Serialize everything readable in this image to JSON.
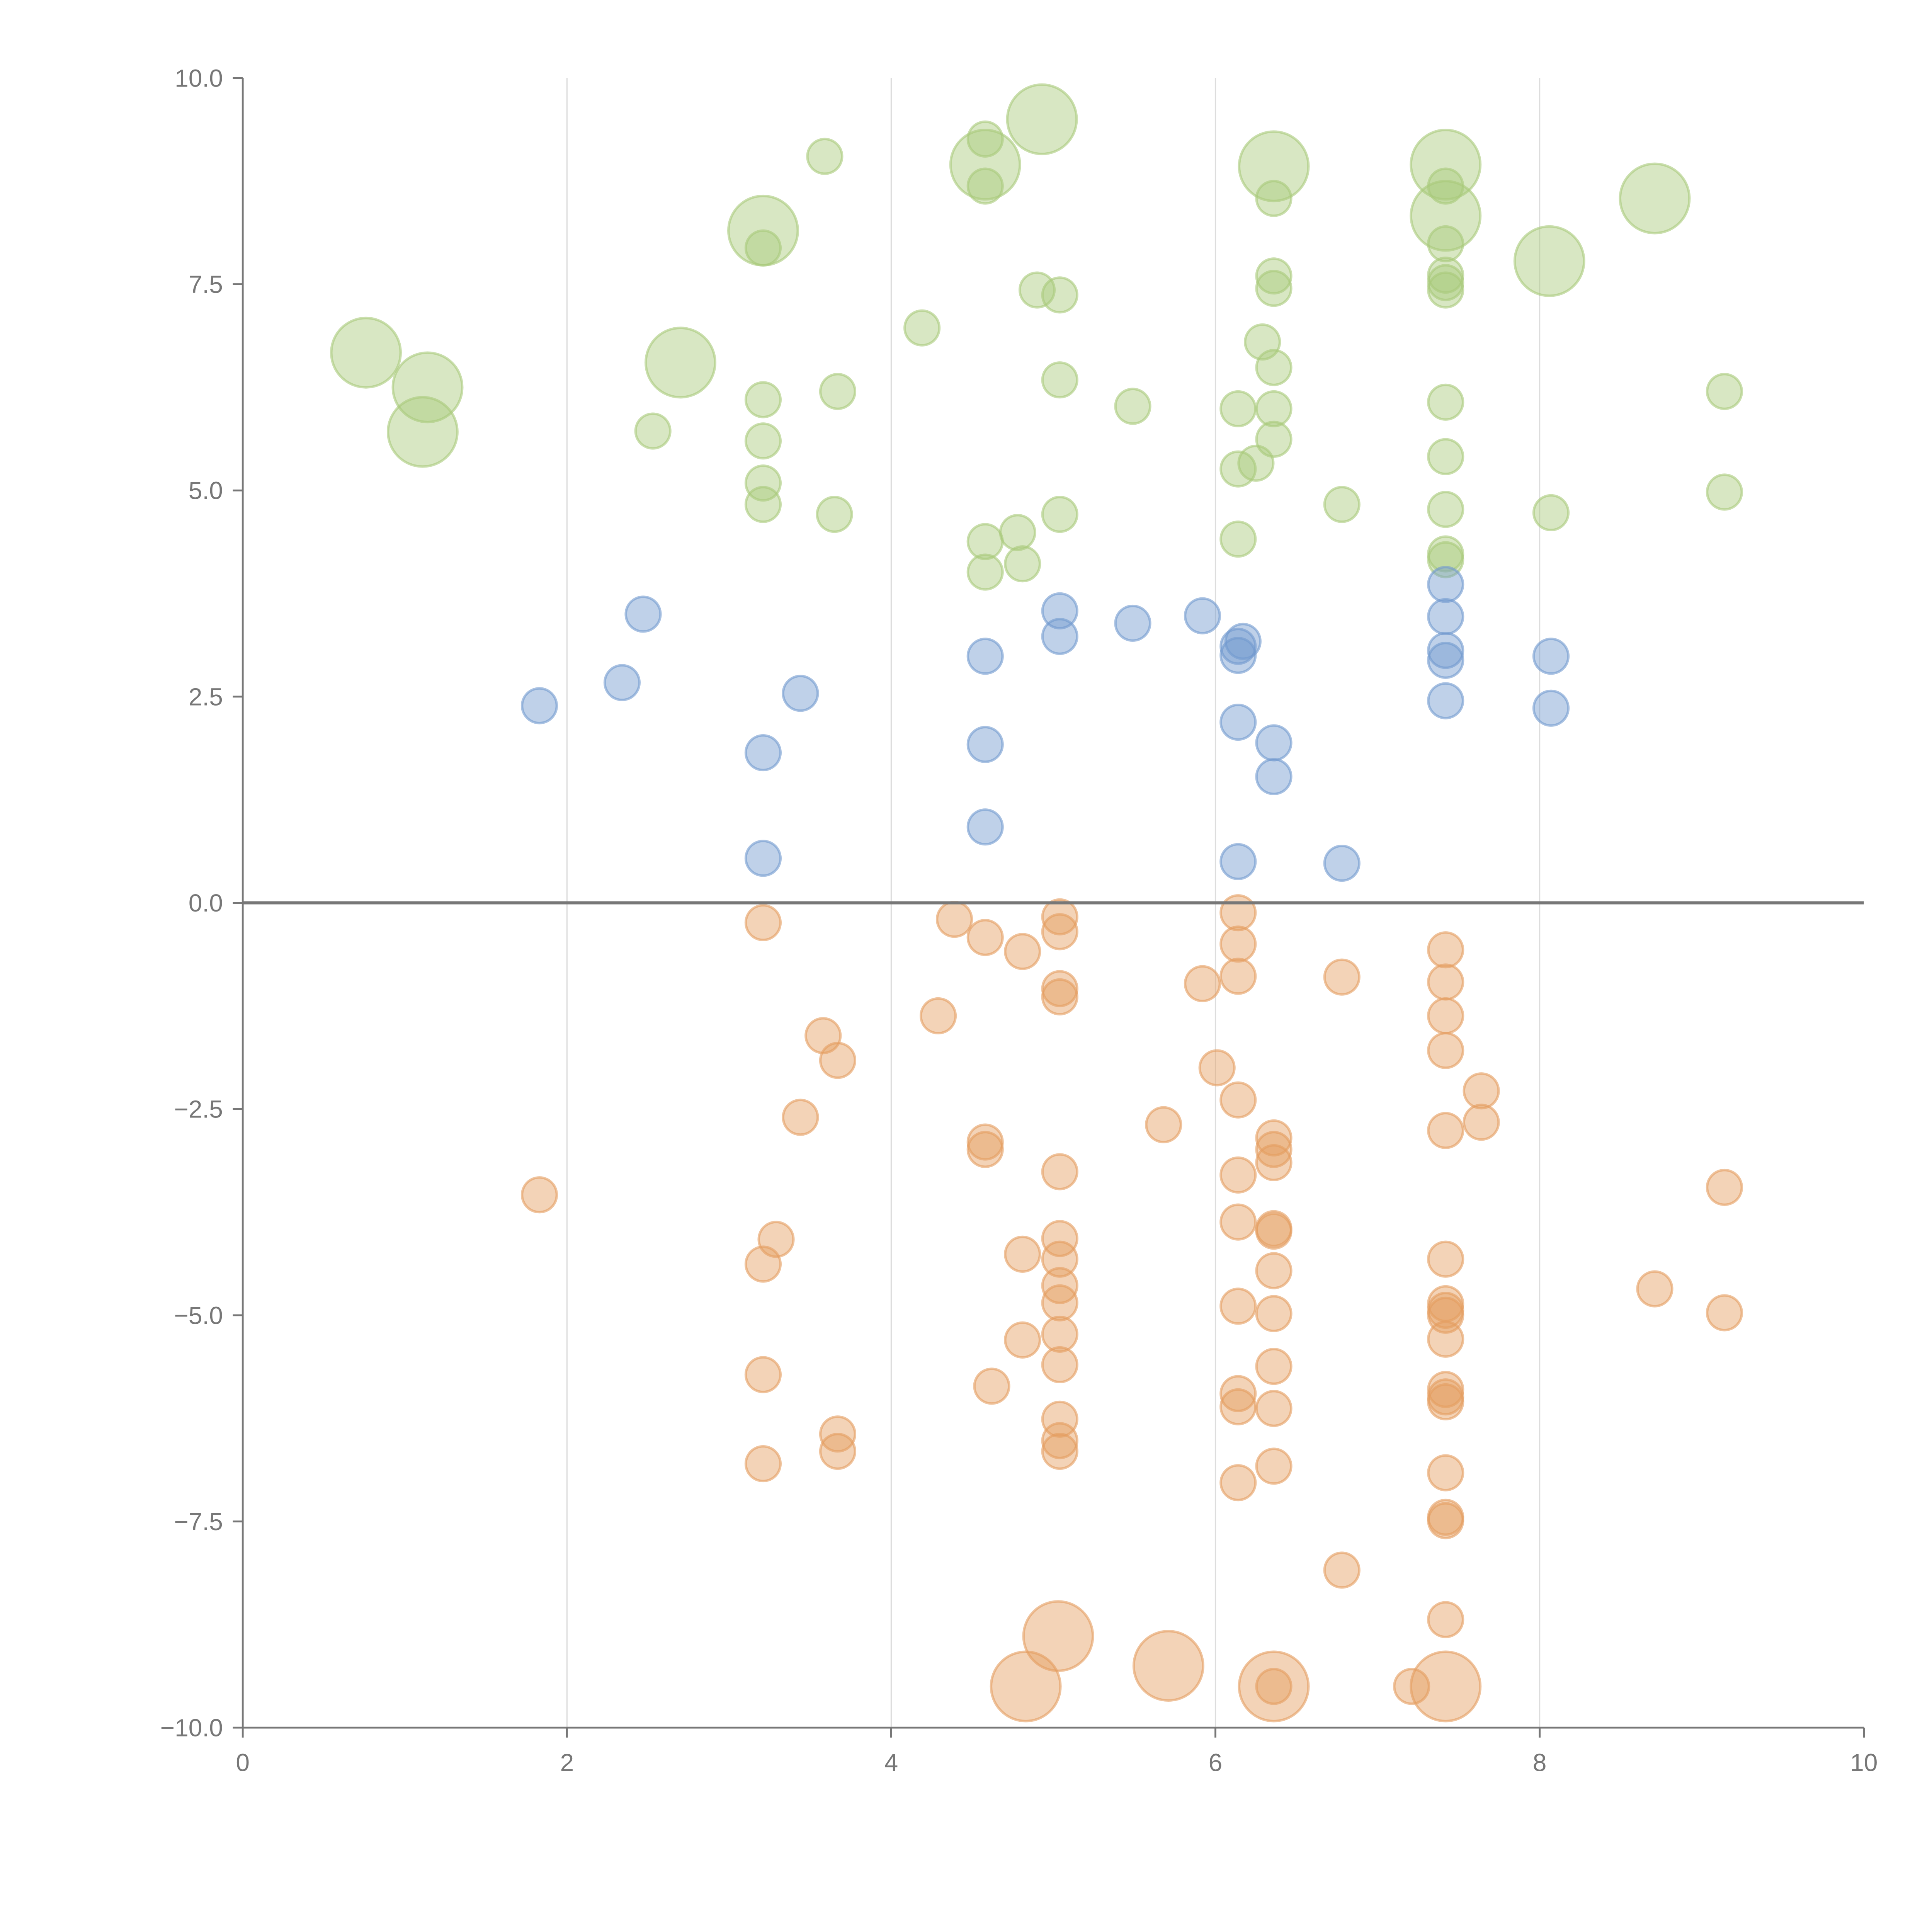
{
  "chart_data": {
    "type": "scatter",
    "title": "",
    "xlabel": "",
    "ylabel": "",
    "xlim": [
      0,
      10
    ],
    "ylim": [
      -10,
      10
    ],
    "grid": "vertical",
    "x_ticks": [
      "0",
      "2",
      "4",
      "6",
      "8",
      "10"
    ],
    "y_ticks": [
      "10.0",
      "7.5",
      "5.0",
      "2.5",
      "0.0",
      "−2.5",
      "−5.0",
      "−7.5",
      "−10.0"
    ],
    "colors": {
      "green": "#a9c97a",
      "blue": "#7199cf",
      "orange": "#e59d5f",
      "axis": "#777777"
    },
    "point_format": [
      "x",
      "y",
      "size"
    ],
    "series": [
      {
        "name": "green",
        "color": "#a9c97a",
        "points": [
          [
            3.59,
            9.05,
            1
          ],
          [
            4.58,
            9.26,
            1
          ],
          [
            4.58,
            8.69,
            1
          ],
          [
            3.21,
            7.94,
            1
          ],
          [
            4.9,
            7.43,
            1
          ],
          [
            5.04,
            7.37,
            1
          ],
          [
            4.19,
            6.97,
            1
          ],
          [
            6.36,
            7.6,
            1
          ],
          [
            6.36,
            7.45,
            1
          ],
          [
            6.36,
            8.54,
            1
          ],
          [
            7.42,
            8.69,
            1
          ],
          [
            7.42,
            7.99,
            1
          ],
          [
            7.42,
            7.61,
            1
          ],
          [
            7.42,
            7.52,
            1
          ],
          [
            7.42,
            7.43,
            1
          ],
          [
            6.29,
            6.8,
            1
          ],
          [
            6.36,
            6.49,
            1
          ],
          [
            6.14,
            5.99,
            1
          ],
          [
            6.36,
            5.99,
            1
          ],
          [
            6.36,
            5.62,
            1
          ],
          [
            6.14,
            5.26,
            1
          ],
          [
            6.25,
            5.33,
            1
          ],
          [
            3.21,
            6.1,
            1
          ],
          [
            3.67,
            6.2,
            1
          ],
          [
            3.21,
            5.6,
            1
          ],
          [
            2.53,
            5.72,
            1
          ],
          [
            3.21,
            5.09,
            1
          ],
          [
            3.21,
            4.83,
            1
          ],
          [
            3.65,
            4.71,
            1
          ],
          [
            5.04,
            6.34,
            1
          ],
          [
            5.49,
            6.02,
            1
          ],
          [
            5.04,
            4.71,
            1
          ],
          [
            4.58,
            4.38,
            1
          ],
          [
            4.78,
            4.49,
            1
          ],
          [
            4.81,
            4.11,
            1
          ],
          [
            4.58,
            4.01,
            1
          ],
          [
            6.14,
            4.41,
            1
          ],
          [
            6.78,
            4.83,
            1
          ],
          [
            7.42,
            6.07,
            1
          ],
          [
            7.42,
            5.41,
            1
          ],
          [
            7.42,
            4.77,
            1
          ],
          [
            7.42,
            4.23,
            1
          ],
          [
            7.42,
            4.16,
            1
          ],
          [
            8.07,
            4.73,
            1
          ],
          [
            9.14,
            6.2,
            1
          ],
          [
            9.14,
            4.98,
            1
          ],
          [
            0.76,
            6.67,
            3
          ],
          [
            1.14,
            6.25,
            3
          ],
          [
            1.11,
            5.71,
            3
          ],
          [
            2.7,
            6.55,
            3
          ],
          [
            3.21,
            8.15,
            3
          ],
          [
            4.58,
            8.95,
            3
          ],
          [
            4.93,
            9.5,
            3
          ],
          [
            6.36,
            8.93,
            3
          ],
          [
            7.42,
            8.95,
            3
          ],
          [
            7.42,
            8.33,
            3
          ],
          [
            8.06,
            7.78,
            3
          ],
          [
            8.71,
            8.54,
            3
          ]
        ]
      },
      {
        "name": "blue",
        "color": "#7199cf",
        "points": [
          [
            1.83,
            2.39,
            1
          ],
          [
            2.34,
            2.67,
            1
          ],
          [
            2.47,
            3.5,
            1
          ],
          [
            3.21,
            1.82,
            1
          ],
          [
            3.21,
            0.54,
            1
          ],
          [
            3.44,
            2.54,
            1
          ],
          [
            4.58,
            2.99,
            1
          ],
          [
            4.58,
            1.92,
            1
          ],
          [
            4.58,
            0.92,
            1
          ],
          [
            5.04,
            3.54,
            1
          ],
          [
            5.04,
            3.23,
            1
          ],
          [
            5.49,
            3.39,
            1
          ],
          [
            5.92,
            3.48,
            1
          ],
          [
            6.14,
            3.11,
            1
          ],
          [
            6.14,
            3.0,
            1
          ],
          [
            6.17,
            3.17,
            1
          ],
          [
            6.14,
            2.19,
            1
          ],
          [
            6.36,
            1.94,
            1
          ],
          [
            6.36,
            1.53,
            1
          ],
          [
            6.14,
            0.5,
            1
          ],
          [
            6.78,
            0.48,
            1
          ],
          [
            7.42,
            3.86,
            1
          ],
          [
            7.42,
            3.47,
            1
          ],
          [
            7.42,
            3.06,
            1
          ],
          [
            7.42,
            2.94,
            1
          ],
          [
            7.42,
            2.45,
            1
          ],
          [
            8.07,
            2.99,
            1
          ],
          [
            8.07,
            2.36,
            1
          ]
        ]
      },
      {
        "name": "orange",
        "color": "#e59d5f",
        "points": [
          [
            3.21,
            -0.24,
            1
          ],
          [
            4.39,
            -0.2,
            1
          ],
          [
            4.58,
            -0.42,
            1
          ],
          [
            4.81,
            -0.59,
            1
          ],
          [
            5.04,
            -0.17,
            1
          ],
          [
            5.04,
            -0.35,
            1
          ],
          [
            5.04,
            -1.04,
            1
          ],
          [
            5.04,
            -1.14,
            1
          ],
          [
            4.29,
            -1.37,
            1
          ],
          [
            3.58,
            -1.61,
            1
          ],
          [
            3.67,
            -1.91,
            1
          ],
          [
            3.44,
            -2.6,
            1
          ],
          [
            1.83,
            -3.54,
            1
          ],
          [
            3.29,
            -4.08,
            1
          ],
          [
            3.21,
            -4.38,
            1
          ],
          [
            3.21,
            -5.72,
            1
          ],
          [
            3.21,
            -6.8,
            1
          ],
          [
            3.67,
            -6.44,
            1
          ],
          [
            3.67,
            -6.65,
            1
          ],
          [
            4.58,
            -2.9,
            1
          ],
          [
            4.58,
            -2.99,
            1
          ],
          [
            5.04,
            -3.26,
            1
          ],
          [
            5.04,
            -4.07,
            1
          ],
          [
            5.04,
            -4.32,
            1
          ],
          [
            5.04,
            -4.64,
            1
          ],
          [
            5.04,
            -4.85,
            1
          ],
          [
            5.04,
            -5.23,
            1
          ],
          [
            5.04,
            -5.6,
            1
          ],
          [
            5.04,
            -6.26,
            1
          ],
          [
            5.04,
            -6.52,
            1
          ],
          [
            5.04,
            -6.65,
            1
          ],
          [
            4.81,
            -4.26,
            1
          ],
          [
            4.81,
            -5.3,
            1
          ],
          [
            4.62,
            -5.86,
            1
          ],
          [
            5.68,
            -2.69,
            1
          ],
          [
            5.92,
            -0.98,
            1
          ],
          [
            6.01,
            -2.0,
            1
          ],
          [
            6.14,
            -0.12,
            1
          ],
          [
            6.14,
            -0.5,
            1
          ],
          [
            6.14,
            -0.89,
            1
          ],
          [
            6.14,
            -2.39,
            1
          ],
          [
            6.14,
            -3.3,
            1
          ],
          [
            6.14,
            -3.87,
            1
          ],
          [
            6.14,
            -4.89,
            1
          ],
          [
            6.14,
            -5.95,
            1
          ],
          [
            6.14,
            -6.11,
            1
          ],
          [
            6.14,
            -7.03,
            1
          ],
          [
            6.36,
            -2.85,
            1
          ],
          [
            6.36,
            -2.99,
            1
          ],
          [
            6.36,
            -3.15,
            1
          ],
          [
            6.36,
            -3.95,
            1
          ],
          [
            6.36,
            -3.98,
            1
          ],
          [
            6.36,
            -4.46,
            1
          ],
          [
            6.36,
            -4.98,
            1
          ],
          [
            6.36,
            -5.62,
            1
          ],
          [
            6.36,
            -6.13,
            1
          ],
          [
            6.36,
            -6.83,
            1
          ],
          [
            6.36,
            -9.5,
            1
          ],
          [
            6.78,
            -0.9,
            1
          ],
          [
            6.78,
            -8.09,
            1
          ],
          [
            7.21,
            -9.5,
            1
          ],
          [
            7.42,
            -0.57,
            1
          ],
          [
            7.42,
            -0.96,
            1
          ],
          [
            7.42,
            -1.37,
            1
          ],
          [
            7.42,
            -1.79,
            1
          ],
          [
            7.42,
            -2.76,
            1
          ],
          [
            7.42,
            -4.32,
            1
          ],
          [
            7.42,
            -4.86,
            1
          ],
          [
            7.42,
            -4.94,
            1
          ],
          [
            7.42,
            -5.0,
            1
          ],
          [
            7.42,
            -5.29,
            1
          ],
          [
            7.42,
            -5.9,
            1
          ],
          [
            7.42,
            -5.99,
            1
          ],
          [
            7.42,
            -6.05,
            1
          ],
          [
            7.42,
            -6.91,
            1
          ],
          [
            7.42,
            -7.45,
            1
          ],
          [
            7.42,
            -7.49,
            1
          ],
          [
            7.42,
            -8.69,
            1
          ],
          [
            7.64,
            -2.28,
            1
          ],
          [
            7.64,
            -2.66,
            1
          ],
          [
            8.71,
            -4.68,
            1
          ],
          [
            9.14,
            -3.45,
            1
          ],
          [
            9.14,
            -4.97,
            1
          ],
          [
            5.03,
            -8.89,
            3
          ],
          [
            5.71,
            -9.25,
            3
          ],
          [
            4.83,
            -9.5,
            3
          ],
          [
            6.36,
            -9.5,
            3
          ],
          [
            7.42,
            -9.5,
            3
          ]
        ]
      }
    ]
  }
}
